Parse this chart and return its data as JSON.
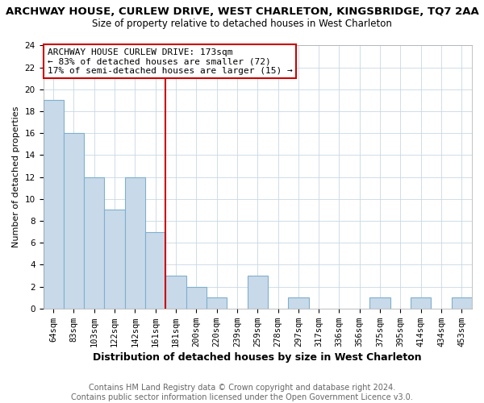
{
  "title": "ARCHWAY HOUSE, CURLEW DRIVE, WEST CHARLETON, KINGSBRIDGE, TQ7 2AA",
  "subtitle": "Size of property relative to detached houses in West Charleton",
  "xlabel": "Distribution of detached houses by size in West Charleton",
  "ylabel": "Number of detached properties",
  "bar_labels": [
    "64sqm",
    "83sqm",
    "103sqm",
    "122sqm",
    "142sqm",
    "161sqm",
    "181sqm",
    "200sqm",
    "220sqm",
    "239sqm",
    "259sqm",
    "278sqm",
    "297sqm",
    "317sqm",
    "336sqm",
    "356sqm",
    "375sqm",
    "395sqm",
    "414sqm",
    "434sqm",
    "453sqm"
  ],
  "bar_values": [
    19,
    16,
    12,
    9,
    12,
    7,
    3,
    2,
    1,
    0,
    3,
    0,
    1,
    0,
    0,
    0,
    1,
    0,
    1,
    0,
    1
  ],
  "bar_color": "#c8daea",
  "bar_edgecolor": "#7fb0cc",
  "vline_x": 5.5,
  "vline_color": "#cc0000",
  "annotation_text": "ARCHWAY HOUSE CURLEW DRIVE: 173sqm\n← 83% of detached houses are smaller (72)\n17% of semi-detached houses are larger (15) →",
  "annotation_box_color": "#ffffff",
  "annotation_box_edgecolor": "#cc0000",
  "ylim": [
    0,
    24
  ],
  "yticks": [
    0,
    2,
    4,
    6,
    8,
    10,
    12,
    14,
    16,
    18,
    20,
    22,
    24
  ],
  "footer": "Contains HM Land Registry data © Crown copyright and database right 2024.\nContains public sector information licensed under the Open Government Licence v3.0.",
  "bg_color": "#ffffff",
  "plot_bg_color": "#ffffff",
  "title_fontsize": 9.5,
  "subtitle_fontsize": 8.5,
  "xlabel_fontsize": 9,
  "ylabel_fontsize": 8,
  "tick_fontsize": 7.5,
  "annotation_fontsize": 8,
  "footer_fontsize": 7
}
